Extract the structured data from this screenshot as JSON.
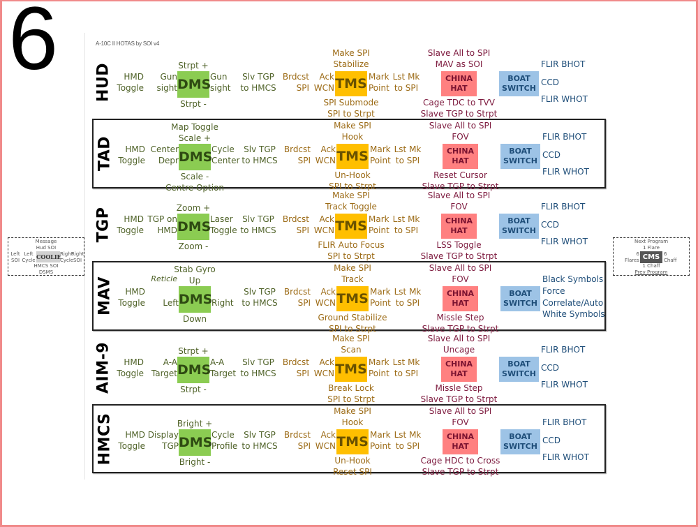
{
  "page_number": "6",
  "doc_title": "A-10C II HOTAS by SOI v4",
  "colors": {
    "dms": "#8bcc52",
    "tms": "#ffbf00",
    "china_hat": "#ff8080",
    "boat_switch": "#9dc3e6",
    "frame": "#f08a8a"
  },
  "switch_labels": {
    "dms": "DMS",
    "tms": "TMS",
    "china": [
      "CHINA",
      "HAT"
    ],
    "boat": [
      "BOAT",
      "SWITCH"
    ]
  },
  "rows": [
    {
      "mode": "HUD",
      "hmd": [
        "HMD",
        "Toggle"
      ],
      "dms_left": [
        "Gun",
        "sight"
      ],
      "dms_right": [
        "Gun",
        "sight"
      ],
      "dms_top": [
        "",
        "Strpt +"
      ],
      "dms_bottom": [
        "Strpt -",
        ""
      ],
      "dms_left_note": "",
      "slv": [
        "Slv TGP",
        "to HMCS"
      ],
      "brdcst": [
        "Brdcst",
        "SPI"
      ],
      "ack": [
        "Ack",
        "WCN"
      ],
      "tms_top": [
        "Make SPI",
        "Stabilize"
      ],
      "tms_bottom": [
        "SPI Submode",
        "SPI to Strpt"
      ],
      "mark": [
        "Mark",
        "Point"
      ],
      "lstmk": [
        "Lst Mk",
        "to SPI"
      ],
      "china_top": [
        "Slave All to SPI",
        "MAV as SOI"
      ],
      "china_bottom": [
        "Cage TDC to TVV",
        "Slave TGP to Strpt"
      ],
      "boat_right": [
        "FLIR BHOT",
        "CCD",
        "FLIR WHOT"
      ]
    },
    {
      "mode": "TAD",
      "hmd": [
        "HMD",
        "Toggle"
      ],
      "dms_left": [
        "Center",
        "Depr"
      ],
      "dms_right": [
        "Cycle",
        "Center"
      ],
      "dms_top": [
        "Map Toggle",
        "Scale +"
      ],
      "dms_bottom": [
        "Scale -",
        "Centre Option"
      ],
      "dms_left_note": "",
      "slv": [
        "Slv TGP",
        "to HMCS"
      ],
      "brdcst": [
        "Brdcst",
        "SPI"
      ],
      "ack": [
        "Ack",
        "WCN"
      ],
      "tms_top": [
        "Make SPI",
        "Hook"
      ],
      "tms_bottom": [
        "Un-Hook",
        "SPI to Strpt"
      ],
      "mark": [
        "Mark",
        "Point"
      ],
      "lstmk": [
        "Lst Mk",
        "to SPI"
      ],
      "china_top": [
        "Slave All to SPI",
        "FOV"
      ],
      "china_bottom": [
        "Reset Cursor",
        "Slave TGP to Strpt"
      ],
      "boat_right": [
        "FLIR BHOT",
        "CCD",
        "FLIR WHOT"
      ]
    },
    {
      "mode": "TGP",
      "hmd": [
        "HMD",
        "Toggle"
      ],
      "dms_left": [
        "TGP on",
        "HMD"
      ],
      "dms_right": [
        "Laser",
        "Toggle"
      ],
      "dms_top": [
        "",
        "Zoom +"
      ],
      "dms_bottom": [
        "Zoom -",
        ""
      ],
      "dms_left_note": "",
      "slv": [
        "Slv TGP",
        "to HMCS"
      ],
      "brdcst": [
        "Brdcst",
        "SPI"
      ],
      "ack": [
        "Ack",
        "WCN"
      ],
      "tms_top": [
        "Make SPI",
        "Track Toggle"
      ],
      "tms_bottom": [
        "FLIR Auto Focus",
        "SPI to Strpt"
      ],
      "mark": [
        "Mark",
        "Point"
      ],
      "lstmk": [
        "Lst Mk",
        "to SPI"
      ],
      "china_top": [
        "Slave All to SPI",
        "FOV"
      ],
      "china_bottom": [
        "LSS Toggle",
        "Slave TGP to Strpt"
      ],
      "boat_right": [
        "FLIR BHOT",
        "CCD",
        "FLIR WHOT"
      ]
    },
    {
      "mode": "MAV",
      "hmd": [
        "HMD",
        "Toggle"
      ],
      "dms_left": [
        "",
        "Left"
      ],
      "dms_right": [
        "",
        "Right"
      ],
      "dms_top": [
        "Stab Gyro",
        "Up"
      ],
      "dms_bottom": [
        "Down",
        ""
      ],
      "dms_left_note": "Reticle",
      "slv": [
        "Slv TGP",
        "to HMCS"
      ],
      "brdcst": [
        "Brdcst",
        "SPI"
      ],
      "ack": [
        "Ack",
        "WCN"
      ],
      "tms_top": [
        "Make SPI",
        "Track"
      ],
      "tms_bottom": [
        "Ground Stabilize",
        "SPI to Strpt"
      ],
      "mark": [
        "Mark",
        "Point"
      ],
      "lstmk": [
        "Lst Mk",
        "to SPI"
      ],
      "china_top": [
        "Slave All to SPI",
        "FOV"
      ],
      "china_bottom": [
        "Missle Step",
        "Slave TGP to Strpt"
      ],
      "boat_right": [
        "Black Symbols",
        "Force",
        "Correlate/Auto",
        "White Symbols"
      ]
    },
    {
      "mode": "AIM-9",
      "hmd": [
        "HMD",
        "Toggle"
      ],
      "dms_left": [
        "A-A",
        "Target"
      ],
      "dms_right": [
        "A-A",
        "Target"
      ],
      "dms_top": [
        "",
        "Strpt +"
      ],
      "dms_bottom": [
        "Strpt -",
        ""
      ],
      "dms_left_note": "",
      "slv": [
        "Slv TGP",
        "to HMCS"
      ],
      "brdcst": [
        "Brdcst",
        "SPI"
      ],
      "ack": [
        "Ack",
        "WCN"
      ],
      "tms_top": [
        "Make SPI",
        "Scan"
      ],
      "tms_bottom": [
        "Break Lock",
        "SPI to Strpt"
      ],
      "mark": [
        "Mark",
        "Point"
      ],
      "lstmk": [
        "Lst Mk",
        "to SPI"
      ],
      "china_top": [
        "Slave All to SPI",
        "Uncage"
      ],
      "china_bottom": [
        "Missle Step",
        "Slave TGP to Strpt"
      ],
      "boat_right": [
        "FLIR BHOT",
        "CCD",
        "FLIR WHOT"
      ]
    },
    {
      "mode": "HMCS",
      "hmd": [
        "HMD",
        "Toggle"
      ],
      "dms_left": [
        "Display",
        "TGP"
      ],
      "dms_right": [
        "Cycle",
        "Profile"
      ],
      "dms_top": [
        "",
        "Bright +"
      ],
      "dms_bottom": [
        "Bright -",
        ""
      ],
      "dms_left_note": "",
      "slv": [
        "Slv TGP",
        "to HMCS"
      ],
      "brdcst": [
        "Brdcst",
        "SPI"
      ],
      "ack": [
        "Ack",
        "WCN"
      ],
      "tms_top": [
        "Make SPI",
        "Hook"
      ],
      "tms_bottom": [
        "Un-Hook",
        "Reset SPI"
      ],
      "mark": [
        "Mark",
        "Point"
      ],
      "lstmk": [
        "Lst Mk",
        "to SPI"
      ],
      "china_top": [
        "Slave All to SPI",
        "FOV"
      ],
      "china_bottom": [
        "Cage HDC to Cross",
        "Slave TGP to Strpt"
      ],
      "boat_right": [
        "FLIR BHOT",
        "CCD",
        "FLIR WHOT"
      ]
    }
  ],
  "coolie": {
    "label": "COOLIE",
    "up": [
      "Message",
      "Hud SOI"
    ],
    "down": [
      "HMCS SOI",
      "DSMS"
    ],
    "left_outer": [
      "Left",
      "SOI"
    ],
    "left_inner": [
      "Left",
      "Cycle"
    ],
    "right_inner": [
      "Right",
      "Cycle"
    ],
    "right_outer": [
      "Right",
      "SOI"
    ]
  },
  "cms": {
    "label": "CMS",
    "up": [
      "Next Program",
      "1 Flare"
    ],
    "down": [
      "1 Chaff",
      "Prev Program"
    ],
    "left": [
      "6",
      "Flares"
    ],
    "right": [
      "6",
      "Chaff"
    ]
  }
}
